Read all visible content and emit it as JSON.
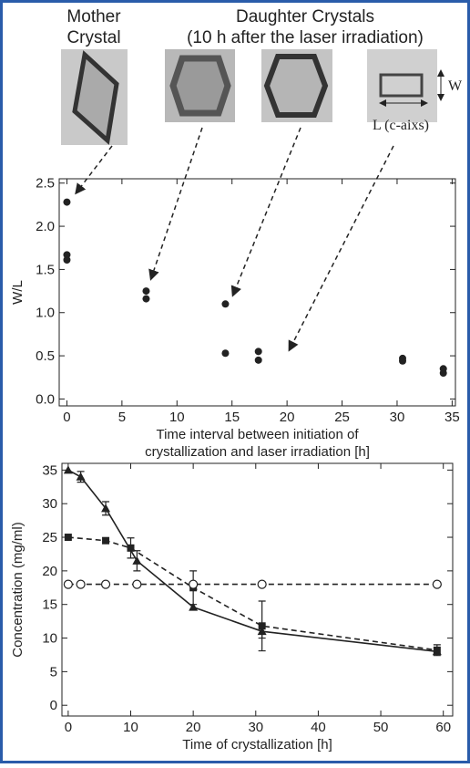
{
  "figure_labels": {
    "mother": [
      "Mother",
      "Crystal"
    ],
    "daughter": [
      "Daughter Crystals",
      "(10 h after the laser irradiation)"
    ],
    "width_label": "W",
    "length_label": "L (c-aixs)"
  },
  "chart_data": [
    {
      "type": "scatter",
      "x_label": [
        "Time interval between initiation of",
        "crystallization and laser irradiation [h]"
      ],
      "y_label": "W/L",
      "x": [
        0,
        0,
        0,
        7.2,
        7.2,
        14.4,
        14.4,
        17.4,
        17.4,
        30.5,
        30.5,
        34.2,
        34.2
      ],
      "values": [
        2.28,
        1.67,
        1.61,
        1.25,
        1.16,
        1.1,
        0.53,
        0.55,
        0.45,
        0.47,
        0.44,
        0.35,
        0.3
      ],
      "color": "#222222",
      "xlim": [
        -0.7,
        35.3
      ],
      "ylim": [
        -0.08,
        2.55
      ],
      "xticks": [
        0,
        5,
        10,
        15,
        20,
        25,
        30,
        35
      ],
      "yticks": [
        {
          "value": 0,
          "label": "0.0"
        },
        0.5,
        {
          "value": 1,
          "label": "1.0"
        },
        1.5,
        {
          "value": 2,
          "label": "2.0"
        },
        2.5
      ]
    },
    {
      "type": "line",
      "x_label": "Time of crystallization [h]",
      "y_label": "Concentration (mg/ml)",
      "xlim": [
        -1,
        61.5
      ],
      "ylim": [
        -1.6,
        36
      ],
      "xticks": [
        0,
        10,
        20,
        30,
        40,
        50,
        60
      ],
      "yticks": [
        0,
        5,
        10,
        15,
        20,
        25,
        30,
        35
      ],
      "series": [
        {
          "color": "#222222",
          "marker": "triangle",
          "dash": false,
          "x": [
            0,
            2,
            6,
            11,
            20,
            31,
            59
          ],
          "values": [
            35,
            34,
            29.3,
            21.5,
            14.6,
            11,
            8
          ],
          "errors": [
            null,
            0.8,
            1,
            1.5,
            null,
            1,
            null
          ]
        },
        {
          "color": "#222222",
          "marker": "square",
          "dash": true,
          "x": [
            0,
            6,
            10,
            20,
            31,
            59
          ],
          "values": [
            25,
            24.5,
            23.4,
            17.5,
            11.8,
            8.2
          ],
          "errors": [
            null,
            null,
            1.5,
            2.5,
            3.7,
            0.8
          ]
        },
        {
          "color": "#222222",
          "marker": "open-circle",
          "dash": true,
          "x": [
            0,
            2,
            6,
            11,
            20,
            31,
            59
          ],
          "values": [
            18,
            18,
            18,
            18,
            18,
            18,
            18
          ],
          "errors": [
            null,
            null,
            null,
            null,
            null,
            null,
            null
          ]
        }
      ]
    }
  ]
}
